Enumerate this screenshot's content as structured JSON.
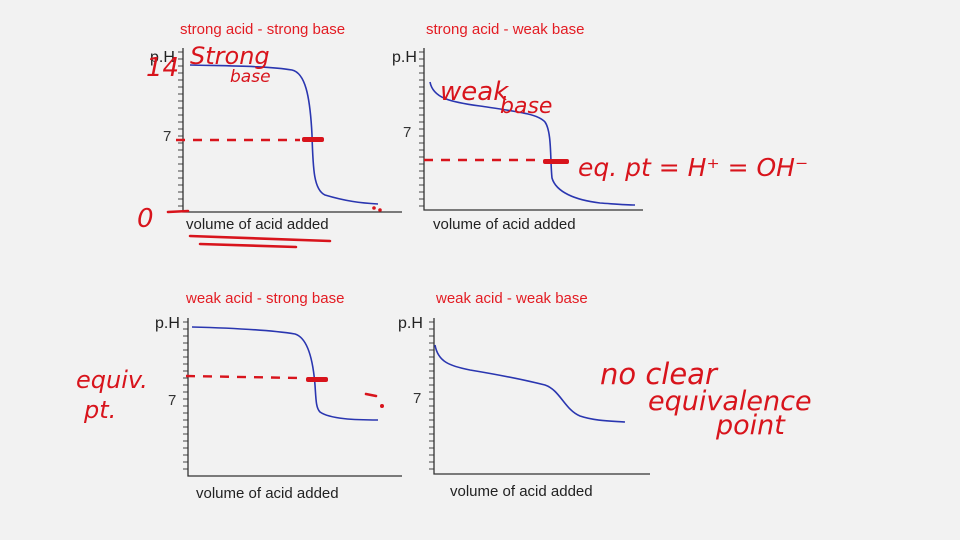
{
  "panels": [
    {
      "title": "strong acid - strong base",
      "y_label": "p.H",
      "y_tick_label": "7",
      "x_label": "volume of acid added"
    },
    {
      "title": "strong acid - weak base",
      "y_label": "p.H",
      "y_tick_label": "7",
      "x_label": "volume of acid added"
    },
    {
      "title": "weak acid - strong base",
      "y_label": "p.H",
      "y_tick_label": "7",
      "x_label": "volume of acid added"
    },
    {
      "title": "weak acid - weak base",
      "y_label": "p.H",
      "y_tick_label": "7",
      "x_label": "volume of acid added"
    }
  ],
  "annotations": {
    "ph14": "14",
    "strong": "Strong",
    "base1": "base",
    "zero": "0",
    "weak": "weak",
    "base2": "base",
    "eq_point": "eq. pt = H⁺ = OH⁻",
    "equiv": "equiv.",
    "pt": "pt.",
    "no_clear": "no clear",
    "equivalence": "equivalence",
    "point": "point"
  },
  "colors": {
    "title": "#e31c23",
    "curve": "#2a36b0",
    "ink": "#d8141c",
    "background": "#f2f2f2"
  }
}
